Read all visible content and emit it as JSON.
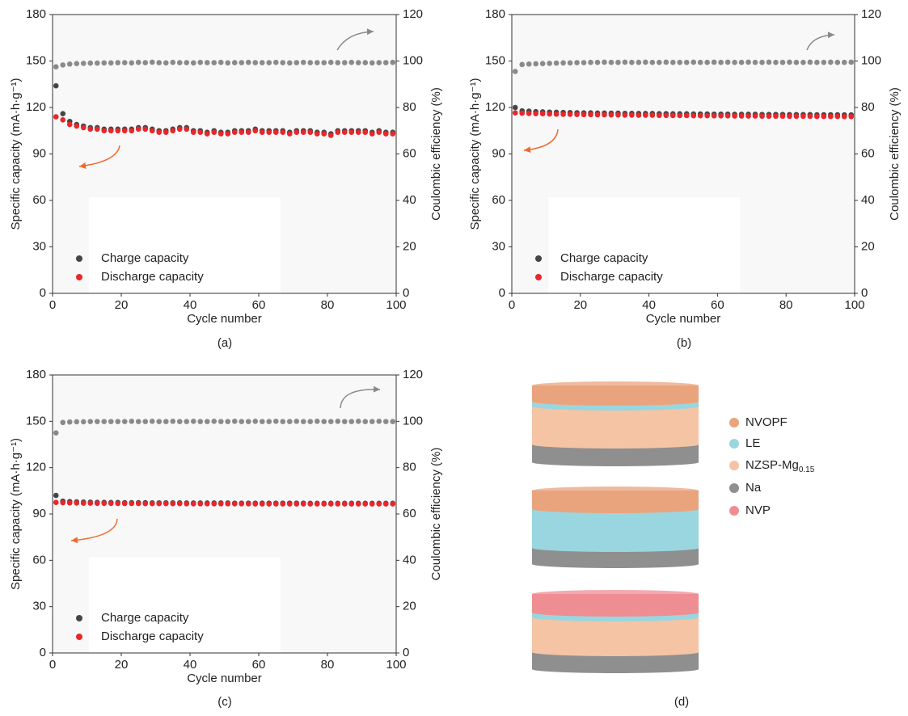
{
  "chart_data": [
    {
      "type": "scatter",
      "panel_label": "(a)",
      "xlabel": "Cycle number",
      "ylabel": "Specific capacity (mA·h·g⁻¹)",
      "y2label": "Coulombic efficiency (%)",
      "xlim": [
        0,
        100
      ],
      "xticks": [
        0,
        20,
        40,
        60,
        80,
        100
      ],
      "ylim": [
        0,
        180
      ],
      "yticks": [
        0,
        30,
        60,
        90,
        120,
        150,
        180
      ],
      "y2lim": [
        0,
        120
      ],
      "y2ticks": [
        0,
        20,
        40,
        60,
        80,
        100,
        120
      ],
      "x": [
        1,
        3,
        5,
        7,
        9,
        11,
        13,
        15,
        17,
        19,
        21,
        23,
        25,
        27,
        29,
        31,
        33,
        35,
        37,
        39,
        41,
        43,
        45,
        47,
        49,
        51,
        53,
        55,
        57,
        59,
        61,
        63,
        65,
        67,
        69,
        71,
        73,
        75,
        77,
        79,
        81,
        83,
        85,
        87,
        89,
        91,
        93,
        95,
        97,
        99
      ],
      "series": [
        {
          "name": "Charge capacity",
          "color": "#454545",
          "values": [
            134,
            116,
            111,
            109,
            108,
            107,
            107,
            106,
            106,
            106,
            106,
            106,
            107,
            107,
            106,
            105,
            105,
            106,
            107,
            107,
            105,
            105,
            104,
            105,
            104,
            104,
            105,
            105,
            105,
            106,
            105,
            105,
            105,
            105,
            104,
            105,
            105,
            105,
            104,
            104,
            103,
            105,
            105,
            105,
            105,
            105,
            104,
            105,
            104,
            104
          ]
        },
        {
          "name": "Discharge capacity",
          "color": "#e8262b",
          "values": [
            114,
            112,
            109,
            108,
            107,
            106,
            106,
            105,
            105,
            105,
            105,
            105,
            106,
            106,
            105,
            104,
            104,
            105,
            106,
            106,
            104,
            104,
            103,
            104,
            103,
            103,
            104,
            104,
            104,
            105,
            104,
            104,
            104,
            104,
            103,
            104,
            104,
            104,
            103,
            103,
            102,
            104,
            104,
            104,
            104,
            104,
            103,
            104,
            103,
            103
          ]
        },
        {
          "color": "#8a8a8a",
          "axis": "y2",
          "values": [
            97.5,
            98.3,
            98.7,
            98.9,
            99,
            99.1,
            99.1,
            99.2,
            99.2,
            99.3,
            99.3,
            99.2,
            99.4,
            99.3,
            99.5,
            99.3,
            99.2,
            99.4,
            99.3,
            99.3,
            99.2,
            99.4,
            99.3,
            99.3,
            99.4,
            99.2,
            99.3,
            99.3,
            99.4,
            99.3,
            99.3,
            99.3,
            99.4,
            99.3,
            99.2,
            99.3,
            99.4,
            99.3,
            99.3,
            99.3,
            99.4,
            99.3,
            99.3,
            99.4,
            99.3,
            99.3,
            99.2,
            99.3,
            99.3,
            99.4
          ]
        }
      ]
    },
    {
      "type": "scatter",
      "panel_label": "(b)",
      "xlabel": "Cycle number",
      "ylabel": "Specific capacity (mA·h·g⁻¹)",
      "y2label": "Coulombic efficiency (%)",
      "xlim": [
        0,
        100
      ],
      "xticks": [
        0,
        20,
        40,
        60,
        80,
        100
      ],
      "ylim": [
        0,
        180
      ],
      "yticks": [
        0,
        30,
        60,
        90,
        120,
        150,
        180
      ],
      "y2lim": [
        0,
        120
      ],
      "y2ticks": [
        0,
        20,
        40,
        60,
        80,
        100,
        120
      ],
      "x": [
        1,
        3,
        5,
        7,
        9,
        11,
        13,
        15,
        17,
        19,
        21,
        23,
        25,
        27,
        29,
        31,
        33,
        35,
        37,
        39,
        41,
        43,
        45,
        47,
        49,
        51,
        53,
        55,
        57,
        59,
        61,
        63,
        65,
        67,
        69,
        71,
        73,
        75,
        77,
        79,
        81,
        83,
        85,
        87,
        89,
        91,
        93,
        95,
        97,
        99
      ],
      "series": [
        {
          "name": "Charge capacity",
          "color": "#454545",
          "values": [
            120,
            117.8,
            117.6,
            117.3,
            117.2,
            117,
            116.9,
            116.8,
            116.7,
            116.6,
            116.5,
            116.5,
            116.4,
            116.4,
            116.3,
            116.3,
            116.2,
            116.2,
            116.1,
            116.1,
            116.1,
            116,
            116,
            115.9,
            115.9,
            115.9,
            115.8,
            115.8,
            115.8,
            115.7,
            115.7,
            115.7,
            115.6,
            115.6,
            115.6,
            115.6,
            115.5,
            115.5,
            115.5,
            115.5,
            115.4,
            115.4,
            115.4,
            115.4,
            115.3,
            115.3,
            115.3,
            115.3,
            115.2,
            115.2
          ]
        },
        {
          "name": "Discharge capacity",
          "color": "#e8262b",
          "values": [
            116.5,
            116.3,
            116.2,
            116,
            116,
            115.8,
            115.7,
            115.6,
            115.6,
            115.5,
            115.4,
            115.4,
            115.3,
            115.3,
            115.2,
            115.2,
            115.1,
            115.1,
            115,
            115,
            115,
            114.9,
            114.9,
            114.8,
            114.8,
            114.8,
            114.7,
            114.7,
            114.7,
            114.6,
            114.6,
            114.6,
            114.5,
            114.5,
            114.5,
            114.5,
            114.4,
            114.4,
            114.4,
            114.4,
            114.3,
            114.3,
            114.3,
            114.3,
            114.2,
            114.2,
            114.2,
            114.2,
            114.1,
            114.1
          ]
        },
        {
          "color": "#8a8a8a",
          "axis": "y2",
          "values": [
            95.5,
            98.5,
            98.7,
            98.8,
            98.9,
            99,
            99.1,
            99.2,
            99.2,
            99.3,
            99.3,
            99.4,
            99.4,
            99.5,
            99.4,
            99.4,
            99.5,
            99.4,
            99.4,
            99.5,
            99.4,
            99.4,
            99.5,
            99.4,
            99.4,
            99.4,
            99.5,
            99.4,
            99.4,
            99.5,
            99.4,
            99.5,
            99.4,
            99.4,
            99.5,
            99.4,
            99.4,
            99.5,
            99.4,
            99.4,
            99.5,
            99.4,
            99.4,
            99.5,
            99.4,
            99.4,
            99.5,
            99.4,
            99.4,
            99.5
          ]
        }
      ]
    },
    {
      "type": "scatter",
      "panel_label": "(c)",
      "xlabel": "Cycle number",
      "ylabel": "Specific capacity (mA·h·g⁻¹)",
      "y2label": "Coulombic efficiency (%)",
      "xlim": [
        0,
        100
      ],
      "xticks": [
        0,
        20,
        40,
        60,
        80,
        100
      ],
      "ylim": [
        0,
        180
      ],
      "yticks": [
        0,
        30,
        60,
        90,
        120,
        150,
        180
      ],
      "y2lim": [
        0,
        120
      ],
      "y2ticks": [
        0,
        20,
        40,
        60,
        80,
        100,
        120
      ],
      "x": [
        1,
        3,
        5,
        7,
        9,
        11,
        13,
        15,
        17,
        19,
        21,
        23,
        25,
        27,
        29,
        31,
        33,
        35,
        37,
        39,
        41,
        43,
        45,
        47,
        49,
        51,
        53,
        55,
        57,
        59,
        61,
        63,
        65,
        67,
        69,
        71,
        73,
        75,
        77,
        79,
        81,
        83,
        85,
        87,
        89,
        91,
        93,
        95,
        97,
        99
      ],
      "series": [
        {
          "name": "Charge capacity",
          "color": "#454545",
          "values": [
            102,
            98.3,
            98,
            97.8,
            97.7,
            97.6,
            97.5,
            97.5,
            97.4,
            97.4,
            97.3,
            97.3,
            97.3,
            97.3,
            97.2,
            97.2,
            97.2,
            97.2,
            97.2,
            97.1,
            97.1,
            97.1,
            97.1,
            97.1,
            97.1,
            97.1,
            97,
            97,
            97,
            97,
            97,
            97,
            97,
            97,
            97,
            97,
            97,
            96.9,
            96.9,
            96.9,
            96.9,
            96.9,
            96.9,
            96.9,
            96.9,
            96.9,
            96.9,
            96.9,
            96.9,
            96.9
          ]
        },
        {
          "name": "Discharge capacity",
          "color": "#e8262b",
          "values": [
            97.5,
            97.3,
            97.2,
            97.1,
            97,
            97,
            96.9,
            96.9,
            96.9,
            96.8,
            96.8,
            96.8,
            96.8,
            96.7,
            96.7,
            96.7,
            96.7,
            96.7,
            96.7,
            96.6,
            96.6,
            96.6,
            96.6,
            96.6,
            96.6,
            96.6,
            96.6,
            96.6,
            96.6,
            96.5,
            96.5,
            96.5,
            96.5,
            96.5,
            96.5,
            96.5,
            96.5,
            96.5,
            96.5,
            96.5,
            96.5,
            96.5,
            96.5,
            96.5,
            96.5,
            96.5,
            96.5,
            96.5,
            96.5,
            96.5
          ]
        },
        {
          "color": "#8a8a8a",
          "axis": "y2",
          "values": [
            95,
            99.5,
            99.7,
            99.8,
            99.8,
            99.9,
            99.9,
            99.9,
            99.9,
            99.9,
            99.9,
            100,
            99.9,
            99.9,
            100,
            99.9,
            99.9,
            100,
            99.9,
            99.9,
            100,
            99.9,
            99.9,
            100,
            99.9,
            99.9,
            100,
            99.9,
            99.9,
            100,
            99.9,
            99.9,
            100,
            99.9,
            99.9,
            100,
            99.9,
            99.9,
            100,
            99.9,
            99.9,
            100,
            99.9,
            99.9,
            100,
            99.9,
            99.9,
            100,
            99.9,
            99.9
          ]
        }
      ]
    }
  ],
  "diagram": {
    "panel_label": "(d)",
    "legend": [
      {
        "label": "NVOPF",
        "color": "#e9a47e"
      },
      {
        "label": "LE",
        "color": "#9ad6df"
      },
      {
        "label": "NZSP-Mg",
        "subscript": "0.15",
        "color": "#f5c4a4"
      },
      {
        "label": "Na",
        "color": "#8f8f8f"
      },
      {
        "label": "NVP",
        "color": "#ee8e93"
      }
    ]
  }
}
